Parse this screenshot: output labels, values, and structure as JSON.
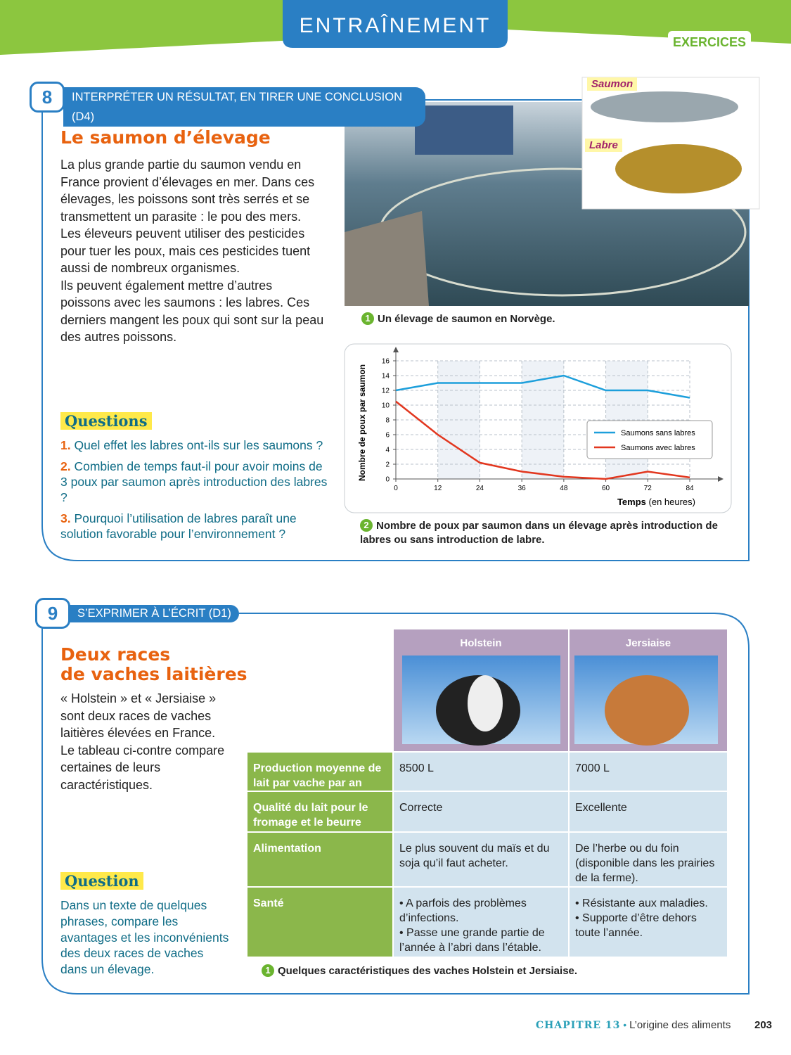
{
  "header": {
    "banner": "ENTRAÎNEMENT",
    "tab": "EXERCICES"
  },
  "exercise8": {
    "number": "8",
    "skill": "INTERPRÉTER UN RÉSULTAT, EN TIRER UNE CONCLUSION (D4)",
    "title": "Le saumon d’élevage",
    "paragraphs": [
      "La plus grande partie du saumon vendu en France provient d’élevages en mer. Dans ces élevages, les poissons sont très serrés et se transmettent un parasite : le pou des mers. Les éleveurs peuvent utiliser des pesticides pour tuer les poux, mais ces pesticides tuent aussi de nombreux organismes.",
      "Ils peuvent également mettre d’autres poissons avec les saumons : les labres. Ces derniers mangent les poux qui sont sur la peau des autres poissons."
    ],
    "questions_heading": "Questions",
    "questions": [
      {
        "number": "1.",
        "text": "Quel effet les labres ont-ils sur les saumons ?"
      },
      {
        "number": "2.",
        "text": "Combien de temps faut-il pour avoir moins de 3 poux par saumon après introduction des labres ?"
      },
      {
        "number": "3.",
        "text": "Pourquoi l’utilisation de labres paraît une solution favorable pour l’environnement ?"
      }
    ],
    "fish_labels": [
      "Saumon",
      "Labre"
    ],
    "figure1": {
      "number": "1",
      "caption": "Un élevage de saumon en Norvège."
    },
    "figure2": {
      "number": "2",
      "caption": "Nombre de poux par saumon dans un élevage après introduction de labres ou sans introduction de labre."
    }
  },
  "chart_data": {
    "type": "line",
    "ylabel": "Nombre de poux par saumon",
    "xlabel": "Temps",
    "xunit": "(en heures)",
    "x": [
      0,
      12,
      24,
      36,
      48,
      60,
      72,
      84
    ],
    "xlim": [
      0,
      84
    ],
    "xticks": [
      0,
      12,
      24,
      36,
      48,
      60,
      72,
      84
    ],
    "ylim": [
      0,
      16
    ],
    "yticks": [
      0,
      2,
      4,
      6,
      8,
      10,
      12,
      14,
      16
    ],
    "grid": true,
    "legend": "right",
    "series": [
      {
        "name": "Saumons sans labres",
        "color": "#1d9fdb",
        "values": [
          12,
          13,
          13,
          13,
          14,
          12,
          12,
          11
        ]
      },
      {
        "name": "Saumons avec labres",
        "color": "#e2371f",
        "values": [
          10.5,
          6,
          2.2,
          1,
          0.3,
          0,
          1,
          0.2
        ]
      }
    ]
  },
  "exercise9": {
    "number": "9",
    "skill": "S’EXPRIMER À L’ÉCRIT (D1)",
    "title": [
      "Deux races",
      "de vaches laitières"
    ],
    "text": "« Holstein » et « Jersiaise » sont deux races de vaches laitières élevées en France. Le tableau ci-contre compare certaines de leurs caractéristiques.",
    "question_heading": "Question",
    "question": "Dans un texte de quelques phrases, compare les avantages et les inconvénients des deux races de vaches dans un élevage.",
    "table": {
      "headers": [
        "Holstein",
        "Jersiaise"
      ],
      "rows": [
        {
          "label": "Production moyenne de lait par vache par an",
          "cells": [
            [
              "8500 L"
            ],
            [
              "7000 L"
            ]
          ]
        },
        {
          "label": "Qualité du lait pour le fromage et le beurre",
          "cells": [
            [
              "Correcte"
            ],
            [
              "Excellente"
            ]
          ]
        },
        {
          "label": "Alimentation",
          "cells": [
            [
              "Le plus souvent du maïs et du soja qu’il faut acheter."
            ],
            [
              "De l’herbe ou du foin (disponible dans les prairies de la ferme)."
            ]
          ]
        },
        {
          "label": "Santé",
          "cells": [
            [
              "• A parfois des problèmes d’infections.",
              "• Passe une grande partie de l’année à l’abri dans l’étable."
            ],
            [
              "• Résistante aux maladies.",
              "• Supporte d’être dehors toute l’année."
            ]
          ]
        }
      ]
    },
    "figure1": {
      "number": "1",
      "caption": "Quelques caractéristiques des vaches Holstein et Jersiaise."
    }
  },
  "footer": {
    "chapter": "CHAPITRE 13",
    "separator": "•",
    "title": "L’origine des aliments",
    "page": "203"
  }
}
